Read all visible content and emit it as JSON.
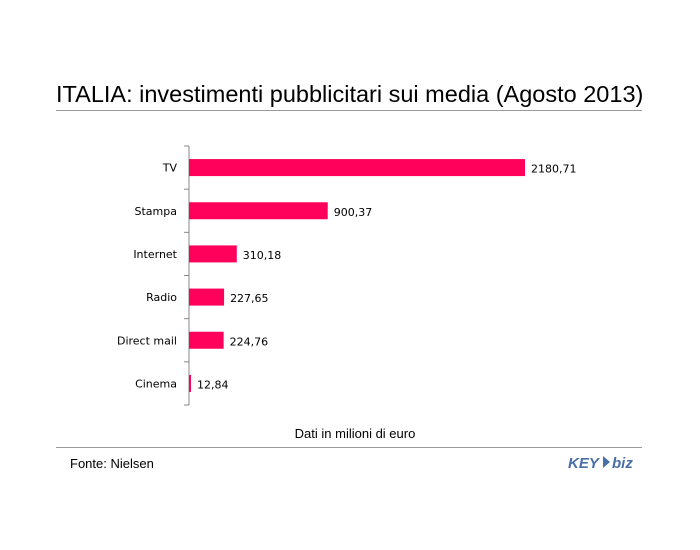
{
  "title": "ITALIA: investimenti pubblicitari sui media (Agosto 2013)",
  "unit_note": "Dati in milioni di euro",
  "source": "Fonte: Nielsen",
  "logo": {
    "text_main": "KEY",
    "text_accent": "biz"
  },
  "colors": {
    "bar": "#ff005a",
    "axis": "#888888",
    "rule": "#9a9a9a",
    "logo": "#4a6ea8"
  },
  "chart_data": {
    "type": "bar",
    "orientation": "horizontal",
    "title": "ITALIA: investimenti pubblicitari sui media (Agosto 2013)",
    "categories": [
      "TV",
      "Stampa",
      "Internet",
      "Radio",
      "Direct mail",
      "Cinema"
    ],
    "values": [
      2180.71,
      900.37,
      310.18,
      227.65,
      224.76,
      12.84
    ],
    "value_labels": [
      "2180,71",
      "900,37",
      "310,18",
      "227,65",
      "224,76",
      "12,84"
    ],
    "xlabel": "Dati in milioni di euro",
    "ylabel": "",
    "xlim": [
      0,
      2180.71
    ],
    "grid": false,
    "legend": "none"
  }
}
